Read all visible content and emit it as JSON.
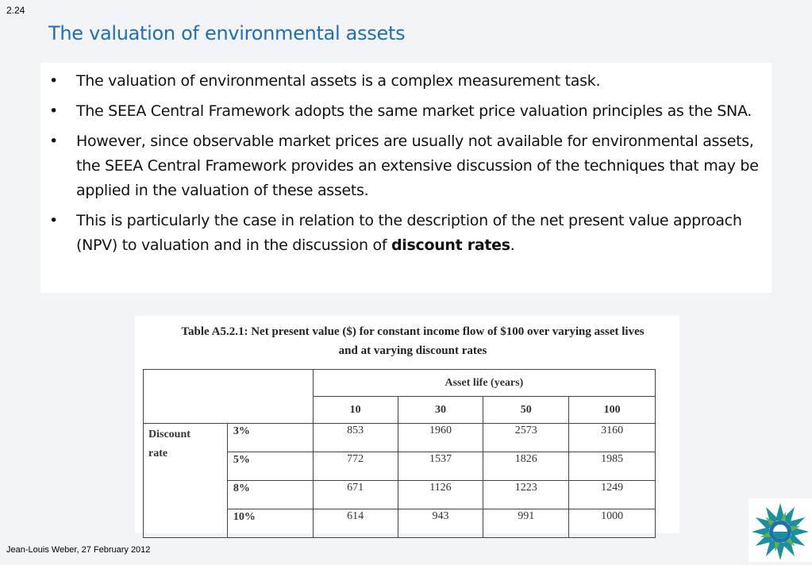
{
  "slide_number": "2.24",
  "title": "The valuation of environmental assets",
  "bullets": [
    {
      "text": "The valuation of environmental assets is a complex measurement task."
    },
    {
      "text": "The SEEA Central Framework adopts the same market price valuation principles as the SNA."
    },
    {
      "text": "However, since observable market prices are usually not available for environmental assets, the SEEA Central Framework provides an extensive discussion of the techniques that may be applied in the valuation of these assets."
    },
    {
      "text_before": "This is particularly the case in relation to the description of the net present value approach (NPV) to valuation and in the discussion of ",
      "bold": "discount rates",
      "text_after": "."
    }
  ],
  "table": {
    "caption_line1": "Table A5.2.1: Net present value ($) for constant income flow of $100 over varying asset lives",
    "caption_line2": "and at varying discount rates",
    "group_header": "Asset life (years)",
    "row_group_label": "Discount rate",
    "columns": [
      "10",
      "30",
      "50",
      "100"
    ],
    "rows": [
      {
        "rate": "3%",
        "values": [
          "853",
          "1960",
          "2573",
          "3160"
        ]
      },
      {
        "rate": "5%",
        "values": [
          "772",
          "1537",
          "1826",
          "1985"
        ]
      },
      {
        "rate": "8%",
        "values": [
          "671",
          "1126",
          "1223",
          "1249"
        ]
      },
      {
        "rate": "10%",
        "values": [
          "614",
          "943",
          "991",
          "1000"
        ]
      }
    ]
  },
  "footer": "Jean-Louis Weber, 27 February 2012",
  "colors": {
    "title": "#1f6fb2",
    "logo_teal": "#1a8fa0",
    "logo_blue": "#1f6fb2",
    "logo_green": "#5fb24a"
  },
  "logo_icon": "seea-sun-logo-icon"
}
